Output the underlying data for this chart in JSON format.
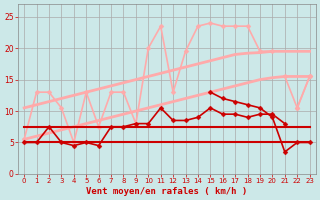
{
  "x": [
    0,
    1,
    2,
    3,
    4,
    5,
    6,
    7,
    8,
    9,
    10,
    11,
    12,
    13,
    14,
    15,
    16,
    17,
    18,
    19,
    20,
    21,
    22,
    23
  ],
  "background_color": "#cce8e8",
  "grid_color": "#aaaaaa",
  "xlabel": "Vent moyen/en rafales ( km/h )",
  "xlabel_color": "#cc0000",
  "lines": [
    {
      "y": [
        5.5,
        6.0,
        6.5,
        7.0,
        7.5,
        8.0,
        8.5,
        9.0,
        9.5,
        10.0,
        10.5,
        11.0,
        11.5,
        12.0,
        12.5,
        13.0,
        13.5,
        14.0,
        14.5,
        15.0,
        15.3,
        15.5,
        15.5,
        15.5
      ],
      "color": "#ffaaaa",
      "linewidth": 2.0,
      "marker": null
    },
    {
      "y": [
        10.5,
        11.0,
        11.5,
        12.0,
        12.5,
        13.0,
        13.5,
        14.0,
        14.5,
        15.0,
        15.5,
        16.0,
        16.5,
        17.0,
        17.5,
        18.0,
        18.5,
        19.0,
        19.2,
        19.3,
        19.5,
        19.5,
        19.5,
        19.5
      ],
      "color": "#ffaaaa",
      "linewidth": 2.0,
      "marker": null
    },
    {
      "y": [
        5.5,
        13.0,
        13.0,
        10.5,
        5.0,
        13.0,
        7.5,
        13.0,
        13.0,
        8.0,
        20.0,
        23.5,
        13.0,
        19.5,
        23.5,
        24.0,
        23.5,
        23.5,
        23.5,
        19.5,
        19.5,
        null,
        10.5,
        15.5
      ],
      "color": "#ffaaaa",
      "linewidth": 1.2,
      "marker": "D",
      "markersize": 2.5
    },
    {
      "y": [
        5.0,
        5.0,
        5.0,
        5.0,
        5.0,
        5.0,
        5.0,
        5.0,
        5.0,
        5.0,
        5.0,
        5.0,
        5.0,
        5.0,
        5.0,
        5.0,
        5.0,
        5.0,
        5.0,
        5.0,
        5.0,
        5.0,
        5.0,
        5.0
      ],
      "color": "#cc0000",
      "linewidth": 1.5,
      "marker": null
    },
    {
      "y": [
        7.5,
        7.5,
        7.5,
        7.5,
        7.5,
        7.5,
        7.5,
        7.5,
        7.5,
        7.5,
        7.5,
        7.5,
        7.5,
        7.5,
        7.5,
        7.5,
        7.5,
        7.5,
        7.5,
        7.5,
        7.5,
        7.5,
        7.5,
        7.5
      ],
      "color": "#cc0000",
      "linewidth": 1.5,
      "marker": null
    },
    {
      "y": [
        5.0,
        5.0,
        7.5,
        5.0,
        4.5,
        5.0,
        4.5,
        7.5,
        7.5,
        8.0,
        8.0,
        10.5,
        8.5,
        8.5,
        9.0,
        10.5,
        9.5,
        9.5,
        9.0,
        9.5,
        9.5,
        8.0,
        null,
        null
      ],
      "color": "#cc0000",
      "linewidth": 1.2,
      "marker": "D",
      "markersize": 2.5
    },
    {
      "y": [
        null,
        null,
        null,
        null,
        null,
        null,
        null,
        null,
        null,
        null,
        null,
        null,
        null,
        null,
        null,
        13.0,
        12.0,
        11.5,
        11.0,
        10.5,
        9.0,
        3.5,
        5.0,
        5.0
      ],
      "color": "#cc0000",
      "linewidth": 1.2,
      "marker": "D",
      "markersize": 2.5
    },
    {
      "y": [
        null,
        null,
        null,
        null,
        null,
        null,
        null,
        null,
        null,
        null,
        null,
        null,
        null,
        null,
        null,
        null,
        null,
        null,
        null,
        null,
        null,
        15.5,
        10.5,
        15.5
      ],
      "color": "#ffaaaa",
      "linewidth": 1.2,
      "marker": "D",
      "markersize": 2.5
    }
  ],
  "ylim": [
    0,
    27
  ],
  "yticks": [
    0,
    5,
    10,
    15,
    20,
    25
  ],
  "figsize": [
    3.2,
    2.0
  ],
  "dpi": 100
}
